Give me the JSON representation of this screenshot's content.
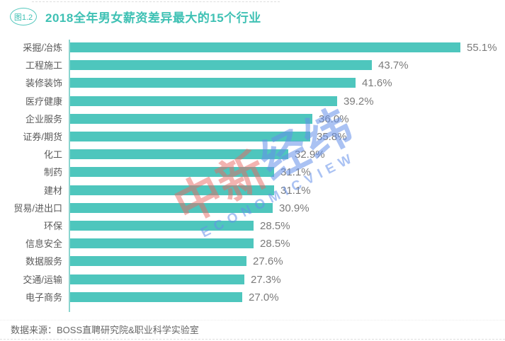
{
  "header": {
    "badge": "图1.2",
    "title": "2018全年男女薪资差异最大的15个行业"
  },
  "footer": {
    "source": "数据来源：BOSS直聘研究院&职业科学实验室"
  },
  "watermark": {
    "cn_part1": "中新",
    "cn_part2": "经纬",
    "en": "ECONOMICVIEW",
    "pink": "#e86862",
    "blue": "#648fea"
  },
  "colors": {
    "bar": "#4ec6bd",
    "axis": "#8bd5cf",
    "accent": "#3fc1b4",
    "category_text": "#595959",
    "value_text": "#7b7b7b",
    "footer_text": "#666666"
  },
  "chart_data": {
    "type": "bar",
    "orientation": "horizontal",
    "title": "2018全年男女薪资差异最大的15个行业",
    "xlabel": "",
    "ylabel": "",
    "unit": "%",
    "xlim": [
      0,
      60
    ],
    "grid": false,
    "legend": false,
    "categories": [
      "采掘/冶炼",
      "工程施工",
      "装修装饰",
      "医疗健康",
      "企业服务",
      "证券/期货",
      "化工",
      "制药",
      "建材",
      "贸易/进出口",
      "环保",
      "信息安全",
      "数据服务",
      "交通/运输",
      "电子商务"
    ],
    "values": [
      55.1,
      43.7,
      41.6,
      39.2,
      36.0,
      35.8,
      32.9,
      31.1,
      31.1,
      30.9,
      28.5,
      28.5,
      27.6,
      27.3,
      27.0
    ],
    "value_labels": [
      "55.1%",
      "43.7%",
      "41.6%",
      "39.2%",
      "36.0%",
      "35.8%",
      "32.9%",
      "31.1%",
      "31.1%",
      "30.9%",
      "28.5%",
      "28.5%",
      "27.6%",
      "27.3%",
      "27.0%"
    ]
  }
}
